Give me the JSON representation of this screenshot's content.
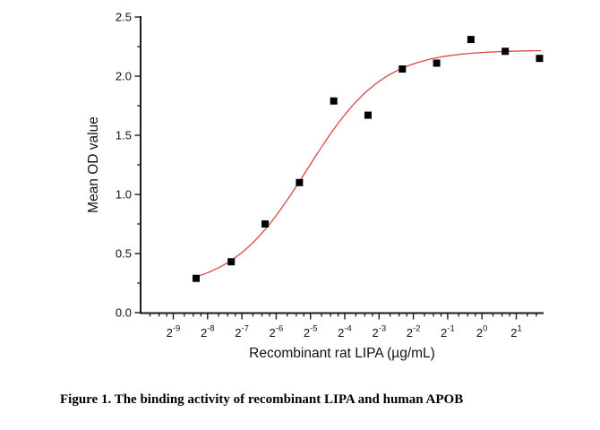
{
  "figure": {
    "caption": "Figure 1. The binding activity of recombinant LIPA and human APOB"
  },
  "chart_data": {
    "type": "scatter",
    "title": "",
    "xlabel": "Recombinant rat LIPA (µg/mL)",
    "ylabel": "Mean OD value",
    "x_scale": "log2",
    "xlim_log2": [
      -9.95,
      1.79
    ],
    "ylim": [
      0,
      2.5
    ],
    "grid": false,
    "legend": "none",
    "x_tick_base": "2",
    "x_tick_exponents": [
      -9,
      -8,
      -7,
      -6,
      -5,
      -4,
      -3,
      -2,
      -1,
      0,
      1
    ],
    "y_ticks": [
      0,
      0.5,
      1,
      1.5,
      2,
      2.5
    ],
    "y_tick_labels": [
      "0.0",
      "0.5",
      "1.0",
      "1.5",
      "2.0",
      "2.5"
    ],
    "series": [
      {
        "name": "Mean OD value",
        "marker": "square",
        "color": "#000000",
        "points": [
          {
            "x_ug_ml": 0.0031,
            "y_od": 0.29
          },
          {
            "x_ug_ml": 0.0063,
            "y_od": 0.43
          },
          {
            "x_ug_ml": 0.0125,
            "y_od": 0.75
          },
          {
            "x_ug_ml": 0.025,
            "y_od": 1.1
          },
          {
            "x_ug_ml": 0.05,
            "y_od": 1.79
          },
          {
            "x_ug_ml": 0.1,
            "y_od": 1.67
          },
          {
            "x_ug_ml": 0.2,
            "y_od": 2.06
          },
          {
            "x_ug_ml": 0.4,
            "y_od": 2.11
          },
          {
            "x_ug_ml": 0.8,
            "y_od": 2.31
          },
          {
            "x_ug_ml": 1.6,
            "y_od": 2.21
          },
          {
            "x_ug_ml": 3.2,
            "y_od": 2.15
          }
        ]
      }
    ],
    "fit_curve": {
      "model": "4PL logistic",
      "color": "#e04545",
      "bottom": 0.2,
      "top": 2.22,
      "hill": 1.3,
      "log2_ec50": -5.1,
      "t_start_log2": -8.33,
      "t_end_log2": 1.74
    }
  }
}
